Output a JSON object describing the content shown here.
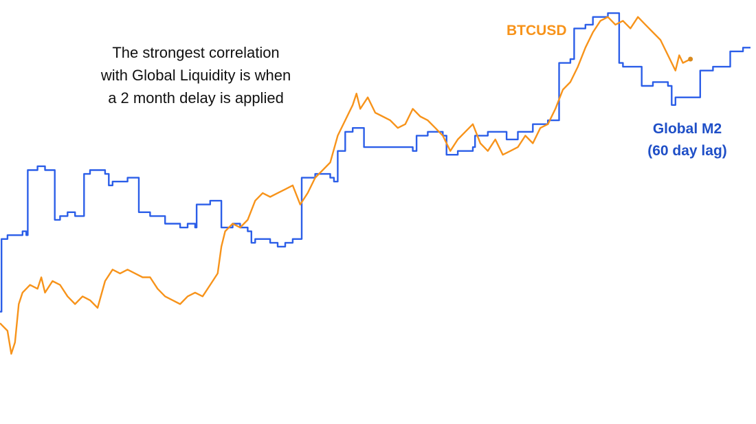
{
  "annotation": {
    "line1": "The strongest correlation",
    "line2": "with Global Liquidity is when",
    "line3": "a 2 month delay is applied"
  },
  "colors": {
    "btc": "#f7931a",
    "m2": "#2b5ee8",
    "m2_label": "#1f4fc7"
  },
  "chart_data": {
    "type": "line",
    "title": "",
    "xlabel": "",
    "ylabel": "",
    "grid": false,
    "legend": "inline labels",
    "x_range": [
      0,
      100
    ],
    "y_range": [
      0,
      100
    ],
    "series": [
      {
        "name": "BTCUSD",
        "color": "#f7931a",
        "style": "line",
        "points": [
          [
            0,
            17
          ],
          [
            1,
            15
          ],
          [
            1.5,
            9
          ],
          [
            2,
            12
          ],
          [
            2.5,
            22
          ],
          [
            3,
            25
          ],
          [
            4,
            27
          ],
          [
            5,
            26
          ],
          [
            5.5,
            29
          ],
          [
            6,
            25
          ],
          [
            7,
            28
          ],
          [
            8,
            27
          ],
          [
            9,
            24
          ],
          [
            10,
            22
          ],
          [
            11,
            24
          ],
          [
            12,
            23
          ],
          [
            13,
            21
          ],
          [
            14,
            28
          ],
          [
            15,
            31
          ],
          [
            16,
            30
          ],
          [
            17,
            31
          ],
          [
            18,
            30
          ],
          [
            19,
            29
          ],
          [
            20,
            29
          ],
          [
            21,
            26
          ],
          [
            22,
            24
          ],
          [
            23,
            23
          ],
          [
            24,
            22
          ],
          [
            25,
            24
          ],
          [
            26,
            25
          ],
          [
            27,
            24
          ],
          [
            28,
            27
          ],
          [
            29,
            30
          ],
          [
            29.5,
            37
          ],
          [
            30,
            41
          ],
          [
            31,
            43
          ],
          [
            32,
            42
          ],
          [
            33,
            44
          ],
          [
            34,
            49
          ],
          [
            35,
            51
          ],
          [
            36,
            50
          ],
          [
            37,
            51
          ],
          [
            38,
            52
          ],
          [
            39,
            53
          ],
          [
            40,
            48
          ],
          [
            41,
            51
          ],
          [
            42,
            55
          ],
          [
            43,
            57
          ],
          [
            44,
            59
          ],
          [
            45,
            66
          ],
          [
            46,
            70
          ],
          [
            47,
            74
          ],
          [
            47.5,
            77
          ],
          [
            48,
            73
          ],
          [
            49,
            76
          ],
          [
            50,
            72
          ],
          [
            51,
            71
          ],
          [
            52,
            70
          ],
          [
            53,
            68
          ],
          [
            54,
            69
          ],
          [
            55,
            73
          ],
          [
            56,
            71
          ],
          [
            57,
            70
          ],
          [
            58,
            68
          ],
          [
            59,
            66
          ],
          [
            60,
            62
          ],
          [
            61,
            65
          ],
          [
            62,
            67
          ],
          [
            63,
            69
          ],
          [
            64,
            64
          ],
          [
            65,
            62
          ],
          [
            66,
            65
          ],
          [
            67,
            61
          ],
          [
            68,
            62
          ],
          [
            69,
            63
          ],
          [
            70,
            66
          ],
          [
            71,
            64
          ],
          [
            72,
            68
          ],
          [
            73,
            69
          ],
          [
            74,
            73
          ],
          [
            75,
            78
          ],
          [
            76,
            80
          ],
          [
            77,
            84
          ],
          [
            78,
            89
          ],
          [
            79,
            93
          ],
          [
            80,
            96
          ],
          [
            81,
            97
          ],
          [
            82,
            95
          ],
          [
            83,
            96
          ],
          [
            84,
            94
          ],
          [
            85,
            97
          ],
          [
            86,
            95
          ],
          [
            87,
            93
          ],
          [
            88,
            91
          ],
          [
            89,
            87
          ],
          [
            90,
            83
          ],
          [
            90.5,
            87
          ],
          [
            91,
            85
          ],
          [
            92,
            86
          ]
        ]
      },
      {
        "name": "Global M2 (60 day lag)",
        "color": "#2b5ee8",
        "style": "step",
        "points": [
          [
            0,
            20
          ],
          [
            0.2,
            39
          ],
          [
            1,
            40
          ],
          [
            3,
            41
          ],
          [
            3.5,
            40
          ],
          [
            3.7,
            57
          ],
          [
            4,
            57
          ],
          [
            5,
            58
          ],
          [
            6,
            57
          ],
          [
            7,
            57
          ],
          [
            7.3,
            44
          ],
          [
            8,
            45
          ],
          [
            9,
            46
          ],
          [
            10,
            45
          ],
          [
            11,
            45
          ],
          [
            11.2,
            56
          ],
          [
            12,
            57
          ],
          [
            13,
            57
          ],
          [
            14,
            56
          ],
          [
            14.5,
            53
          ],
          [
            15,
            54
          ],
          [
            16,
            54
          ],
          [
            17,
            55
          ],
          [
            18,
            55
          ],
          [
            18.5,
            46
          ],
          [
            19,
            46
          ],
          [
            20,
            45
          ],
          [
            21,
            45
          ],
          [
            22,
            43
          ],
          [
            23,
            43
          ],
          [
            24,
            42
          ],
          [
            25,
            43
          ],
          [
            26,
            42
          ],
          [
            26.2,
            48
          ],
          [
            27,
            48
          ],
          [
            28,
            49
          ],
          [
            29,
            49
          ],
          [
            29.5,
            42
          ],
          [
            30,
            42
          ],
          [
            31,
            43
          ],
          [
            32,
            42
          ],
          [
            33,
            41
          ],
          [
            33.5,
            38
          ],
          [
            34,
            39
          ],
          [
            35,
            39
          ],
          [
            36,
            38
          ],
          [
            37,
            37
          ],
          [
            38,
            38
          ],
          [
            39,
            39
          ],
          [
            40,
            39
          ],
          [
            40.2,
            55
          ],
          [
            41,
            55
          ],
          [
            42,
            56
          ],
          [
            43,
            56
          ],
          [
            44,
            55
          ],
          [
            44.5,
            54
          ],
          [
            45,
            62
          ],
          [
            46,
            67
          ],
          [
            47,
            68
          ],
          [
            48,
            68
          ],
          [
            48.5,
            63
          ],
          [
            49,
            63
          ],
          [
            50,
            63
          ],
          [
            51,
            63
          ],
          [
            52,
            63
          ],
          [
            53,
            63
          ],
          [
            54,
            63
          ],
          [
            55,
            62
          ],
          [
            55.5,
            66
          ],
          [
            56,
            66
          ],
          [
            57,
            67
          ],
          [
            58,
            67
          ],
          [
            59,
            66
          ],
          [
            59.5,
            61
          ],
          [
            60,
            61
          ],
          [
            61,
            62
          ],
          [
            62,
            62
          ],
          [
            63,
            63
          ],
          [
            63.3,
            66
          ],
          [
            64,
            66
          ],
          [
            65,
            67
          ],
          [
            66,
            67
          ],
          [
            67,
            67
          ],
          [
            67.5,
            65
          ],
          [
            68,
            65
          ],
          [
            69,
            67
          ],
          [
            70,
            67
          ],
          [
            71,
            69
          ],
          [
            72,
            69
          ],
          [
            73,
            70
          ],
          [
            74,
            70
          ],
          [
            74.5,
            85
          ],
          [
            75,
            85
          ],
          [
            76,
            86
          ],
          [
            76.5,
            94
          ],
          [
            77,
            94
          ],
          [
            78,
            95
          ],
          [
            79,
            97
          ],
          [
            80,
            97
          ],
          [
            81,
            98
          ],
          [
            82,
            98
          ],
          [
            82.5,
            85
          ],
          [
            83,
            84
          ],
          [
            84,
            84
          ],
          [
            85,
            84
          ],
          [
            85.5,
            79
          ],
          [
            86,
            79
          ],
          [
            87,
            80
          ],
          [
            88,
            80
          ],
          [
            89,
            79
          ],
          [
            89.5,
            74
          ],
          [
            90,
            76
          ],
          [
            91,
            76
          ],
          [
            92,
            76
          ],
          [
            93,
            76
          ],
          [
            93.3,
            83
          ],
          [
            94,
            83
          ],
          [
            95,
            84
          ],
          [
            96,
            84
          ],
          [
            97,
            84
          ],
          [
            97.3,
            88
          ],
          [
            98,
            88
          ],
          [
            99,
            89
          ],
          [
            100,
            89
          ]
        ]
      }
    ]
  },
  "labels": {
    "btc": "BTCUSD",
    "m2_line1": "Global M2",
    "m2_line2": "(60 day lag)"
  }
}
